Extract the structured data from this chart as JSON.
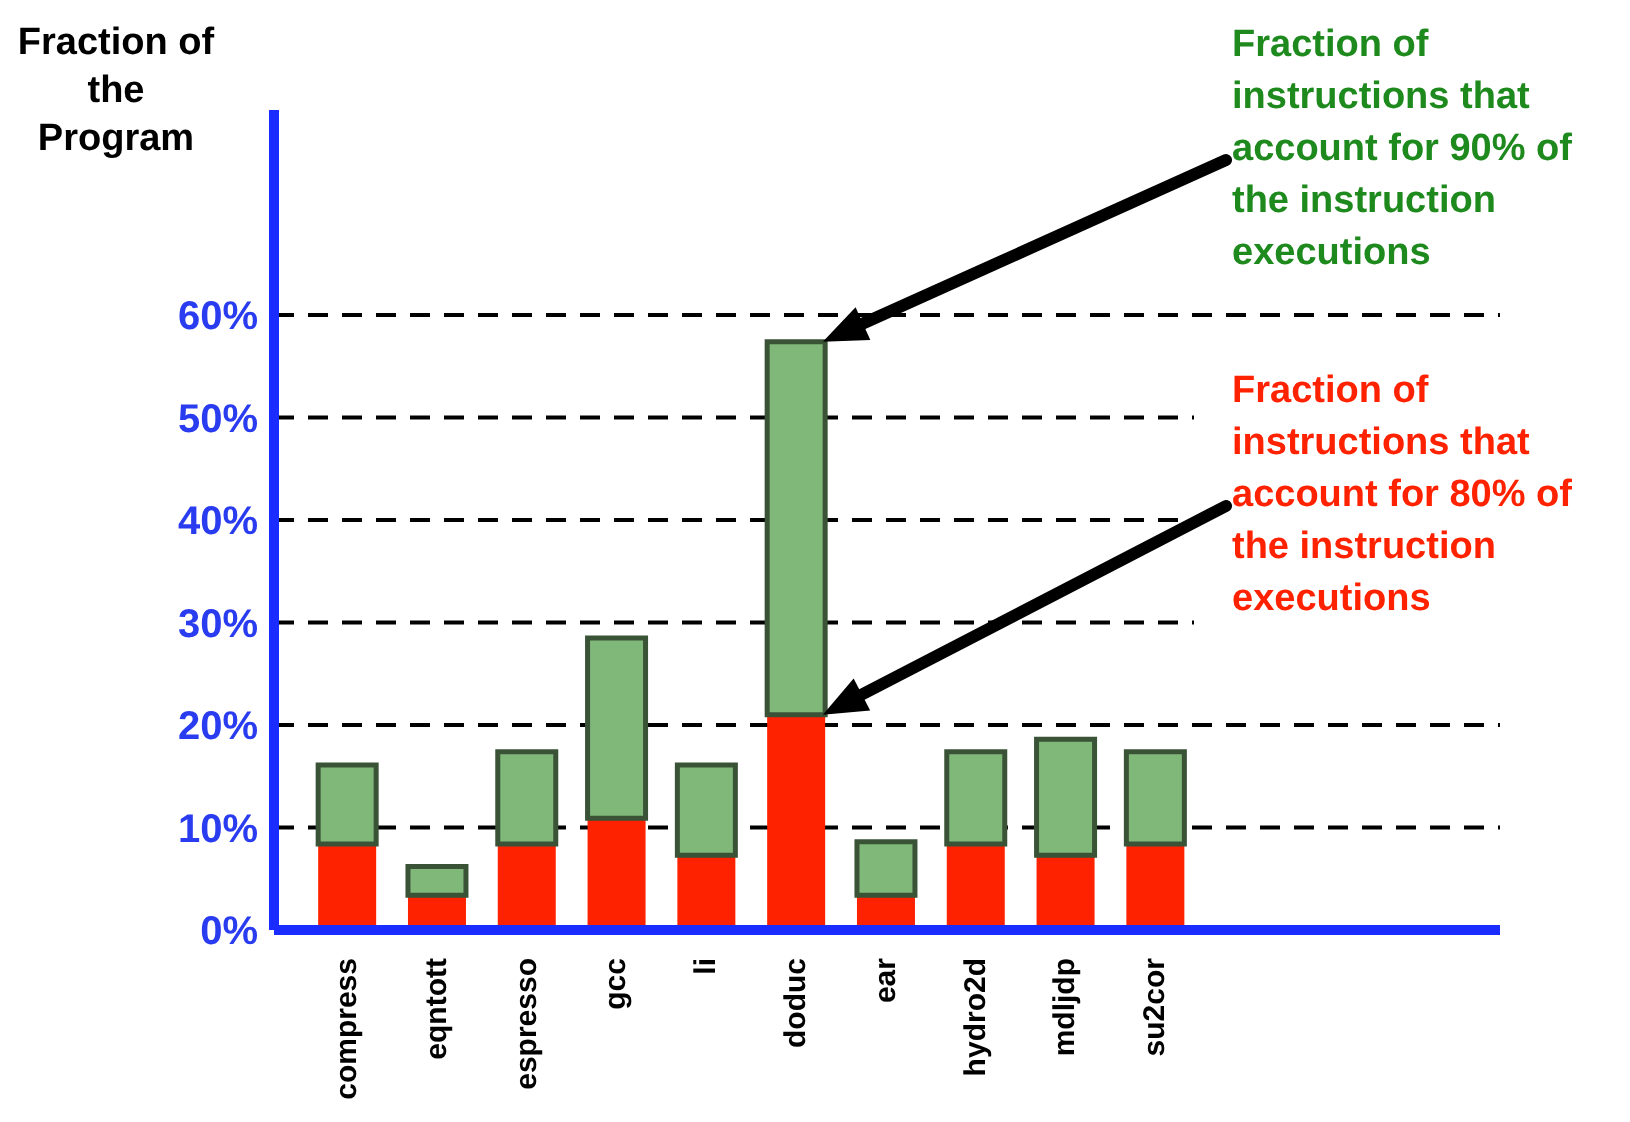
{
  "chart_data": {
    "type": "bar",
    "ylabel": "Fraction of the Program",
    "categories": [
      "compress",
      "eqntott",
      "espresso",
      "gcc",
      "li",
      "doduc",
      "ear",
      "hydro2d",
      "mdljdp",
      "su2cor"
    ],
    "stacked": true,
    "legend": false,
    "grid": "y",
    "ylim": [
      0,
      80
    ],
    "yticks": [
      {
        "value": 0,
        "label": "0%"
      },
      {
        "value": 10,
        "label": "10%"
      },
      {
        "value": 20,
        "label": "20%"
      },
      {
        "value": 30,
        "label": "30%"
      },
      {
        "value": 40,
        "label": "40%"
      },
      {
        "value": 50,
        "label": "50%"
      },
      {
        "value": 60,
        "label": "60%"
      }
    ],
    "series": [
      {
        "name": "Fraction of instructions that account for 80% of the instruction executions",
        "color": "#ff2200",
        "values": [
          8.4,
          3.4,
          8.4,
          10.9,
          7.3,
          21.0,
          3.4,
          8.4,
          7.3,
          8.4
        ]
      },
      {
        "name": "Fraction of instructions that account for 90% of the instruction executions",
        "color": "#80b87a",
        "values": [
          7.7,
          2.8,
          9.0,
          17.6,
          8.8,
          36.4,
          5.2,
          9.0,
          11.3,
          9.0
        ]
      }
    ]
  }
}
